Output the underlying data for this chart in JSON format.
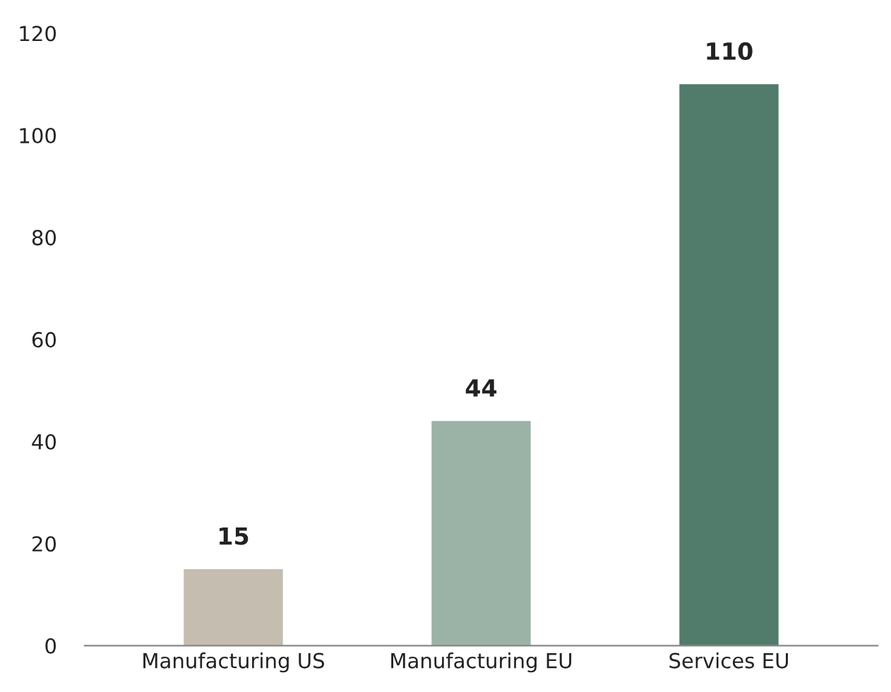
{
  "chart_data": {
    "type": "bar",
    "categories": [
      "Manufacturing US",
      "Manufacturing EU",
      "Services EU"
    ],
    "values": [
      15,
      44,
      110
    ],
    "colors": [
      "#c4bdb0",
      "#9bb2a7",
      "#517b6a"
    ],
    "ylim": [
      0,
      120
    ],
    "yticks": [
      0,
      20,
      40,
      60,
      80,
      100,
      120
    ],
    "grid": false,
    "data_labels": true
  }
}
